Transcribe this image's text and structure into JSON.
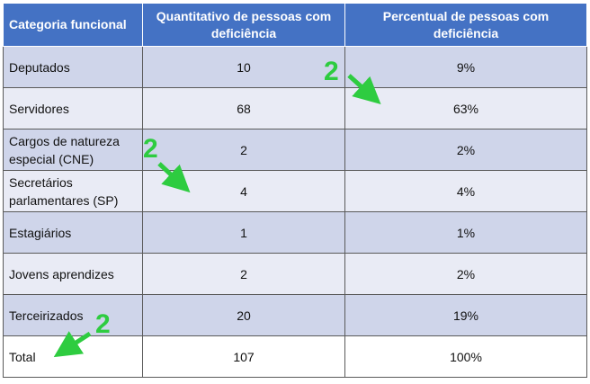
{
  "table": {
    "headers": [
      "Categoria funcional",
      "Quantitativo de pessoas com deficiência",
      "Percentual de pessoas com deficiência"
    ],
    "rows": [
      {
        "category": "Deputados",
        "quantity": "10",
        "percent": "9%"
      },
      {
        "category": "Servidores",
        "quantity": "68",
        "percent": "63%"
      },
      {
        "category": "Cargos de natureza especial (CNE)",
        "quantity": "2",
        "percent": "2%"
      },
      {
        "category": "Secretários parlamentares (SP)",
        "quantity": "4",
        "percent": "4%"
      },
      {
        "category": "Estagiários",
        "quantity": "1",
        "percent": "1%"
      },
      {
        "category": "Jovens aprendizes",
        "quantity": "2",
        "percent": "2%"
      },
      {
        "category": "Terceirizados",
        "quantity": "20",
        "percent": "19%"
      },
      {
        "category": "Total",
        "quantity": "107",
        "percent": "100%"
      }
    ]
  },
  "annotations": [
    {
      "label": "2",
      "color": "#2ecc40"
    },
    {
      "label": "2",
      "color": "#2ecc40"
    },
    {
      "label": "2",
      "color": "#2ecc40"
    }
  ]
}
